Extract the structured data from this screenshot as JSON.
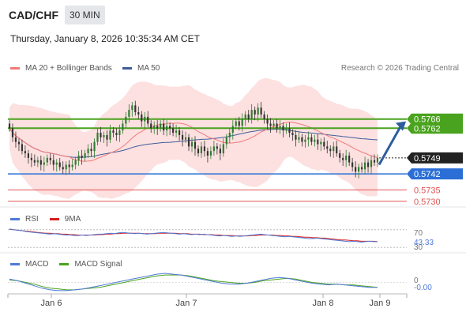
{
  "header": {
    "symbol": "CAD/CHF",
    "timeframe": "30 MIN",
    "datetime": "Thursday, January 8, 2026 10:35:34 AM CET"
  },
  "legend": {
    "ma20_label": "MA 20 + Bollinger Bands",
    "ma50_label": "MA 50",
    "credit": "Research © 2026 Trading Central",
    "rsi_label": "RSI",
    "rsi_ma_label": "9MA",
    "macd_label": "MACD",
    "macd_signal_label": "MACD Signal"
  },
  "colors": {
    "ma20": "#f27a7a",
    "ma50": "#3f5d99",
    "bands": "#fde0e0",
    "resistance": "#4aa31e",
    "support": "#2b6fd6",
    "target": "#e05555",
    "current": "#222222",
    "arrow": "#2f5d9e"
  },
  "chart_data": [
    {
      "type": "candlestick",
      "x_ticks": [
        "Jan 6",
        "Jan 7",
        "Jan 8",
        "Jan 9"
      ],
      "ylim": [
        0.57275,
        0.5787
      ],
      "current_price": "0.5749",
      "levels": [
        {
          "value": 0.5766,
          "label": "0.5766",
          "kind": "resistance"
        },
        {
          "value": 0.5762,
          "label": "0.5762",
          "kind": "resistance"
        },
        {
          "value": 0.5742,
          "label": "0.5742",
          "kind": "support"
        },
        {
          "value": 0.5735,
          "label": "0.5735",
          "kind": "target"
        },
        {
          "value": 0.573,
          "label": "0.5730",
          "kind": "target"
        }
      ],
      "closes": [
        0.5762,
        0.5758,
        0.5756,
        0.5755,
        0.5752,
        0.5751,
        0.5749,
        0.5748,
        0.5747,
        0.5748,
        0.5746,
        0.5747,
        0.5749,
        0.5748,
        0.5746,
        0.5747,
        0.5745,
        0.5744,
        0.5746,
        0.5745,
        0.5746,
        0.5748,
        0.575,
        0.5749,
        0.5751,
        0.5753,
        0.5752,
        0.5756,
        0.576,
        0.5758,
        0.5759,
        0.5757,
        0.5761,
        0.576,
        0.5759,
        0.5761,
        0.5764,
        0.5767,
        0.577,
        0.5772,
        0.5769,
        0.5768,
        0.5765,
        0.5767,
        0.5764,
        0.5762,
        0.5763,
        0.5762,
        0.5764,
        0.5761,
        0.5763,
        0.5762,
        0.576,
        0.5761,
        0.5759,
        0.5757,
        0.5758,
        0.5754,
        0.5756,
        0.5753,
        0.5751,
        0.5754,
        0.5752,
        0.575,
        0.5752,
        0.5754,
        0.5753,
        0.5751,
        0.5755,
        0.5758,
        0.576,
        0.5763,
        0.5765,
        0.5763,
        0.5766,
        0.5768,
        0.5766,
        0.577,
        0.5768,
        0.5771,
        0.5768,
        0.5766,
        0.5764,
        0.5763,
        0.5764,
        0.5762,
        0.5763,
        0.5761,
        0.5762,
        0.576,
        0.5759,
        0.5757,
        0.5758,
        0.5756,
        0.5757,
        0.5758,
        0.5756,
        0.5757,
        0.5755,
        0.5756,
        0.5754,
        0.5753,
        0.5752,
        0.5754,
        0.5751,
        0.5749,
        0.5748,
        0.575,
        0.5747,
        0.5745,
        0.5743,
        0.5745,
        0.5744,
        0.5747,
        0.5745,
        0.5748,
        0.5747,
        0.5749
      ]
    },
    {
      "type": "line",
      "name": "RSI",
      "ylim": [
        0,
        100
      ],
      "tick_labels": [
        "70",
        "30"
      ],
      "current_label": "43.33",
      "rsi": [
        72,
        70,
        69,
        68,
        66,
        65,
        64,
        63,
        62,
        61,
        60,
        61,
        60,
        59,
        58,
        58,
        57,
        57,
        58,
        57,
        58,
        59,
        60,
        60,
        61,
        62,
        61,
        63,
        64,
        63,
        62,
        61,
        62,
        61,
        60,
        61,
        62,
        63,
        64,
        63,
        62,
        61,
        60,
        61,
        60,
        59,
        60,
        59,
        60,
        59,
        58,
        57,
        56,
        57,
        56,
        55,
        56,
        55,
        56,
        57,
        58,
        59,
        60,
        59,
        58,
        57,
        56,
        55,
        54,
        55,
        54,
        53,
        52,
        51,
        50,
        50,
        51,
        50,
        49,
        48,
        47,
        46,
        45,
        44,
        43,
        44,
        43,
        42,
        43,
        44,
        43,
        43
      ],
      "ma9": [
        71,
        70,
        69,
        68,
        67,
        66,
        65,
        64,
        63,
        62,
        62,
        61,
        61,
        60,
        60,
        59,
        59,
        58,
        58,
        58,
        58,
        58,
        59,
        59,
        60,
        60,
        61,
        61,
        62,
        62,
        62,
        62,
        62,
        61,
        61,
        61,
        61,
        62,
        62,
        62,
        62,
        62,
        61,
        61,
        61,
        60,
        60,
        60,
        59,
        59,
        59,
        58,
        58,
        57,
        57,
        57,
        56,
        56,
        56,
        56,
        57,
        57,
        58,
        58,
        58,
        58,
        57,
        57,
        56,
        56,
        55,
        55,
        54,
        53,
        53,
        52,
        52,
        51,
        51,
        50,
        49,
        48,
        47,
        47,
        46,
        45,
        45,
        44,
        44,
        44,
        44,
        43
      ]
    },
    {
      "type": "line",
      "name": "MACD",
      "tick_labels": [
        "0"
      ],
      "current_label": "-0.00",
      "macd": [
        0.4,
        0.2,
        -0.1,
        -0.4,
        -0.7,
        -0.9,
        -1.0,
        -1.0,
        -0.9,
        -0.8,
        -0.6,
        -0.4,
        -0.2,
        0.0,
        0.2,
        0.4,
        0.6,
        0.8,
        1.0,
        1.1,
        1.0,
        0.9,
        0.7,
        0.5,
        0.3,
        0.1,
        -0.1,
        -0.2,
        -0.2,
        -0.1,
        0.1,
        0.3,
        0.5,
        0.6,
        0.5,
        0.3,
        0.1,
        -0.1,
        -0.2,
        -0.3,
        -0.2,
        -0.3,
        -0.4,
        -0.5,
        -0.6,
        -0.6
      ],
      "signal": [
        0.3,
        0.2,
        0.0,
        -0.2,
        -0.5,
        -0.7,
        -0.8,
        -0.9,
        -0.9,
        -0.8,
        -0.7,
        -0.6,
        -0.4,
        -0.2,
        0.0,
        0.2,
        0.4,
        0.6,
        0.8,
        0.9,
        0.9,
        0.9,
        0.8,
        0.6,
        0.4,
        0.2,
        0.1,
        0.0,
        -0.1,
        -0.1,
        0.0,
        0.2,
        0.3,
        0.4,
        0.5,
        0.4,
        0.2,
        0.0,
        -0.1,
        -0.2,
        -0.2,
        -0.3,
        -0.3,
        -0.4,
        -0.5,
        -0.6
      ]
    }
  ]
}
